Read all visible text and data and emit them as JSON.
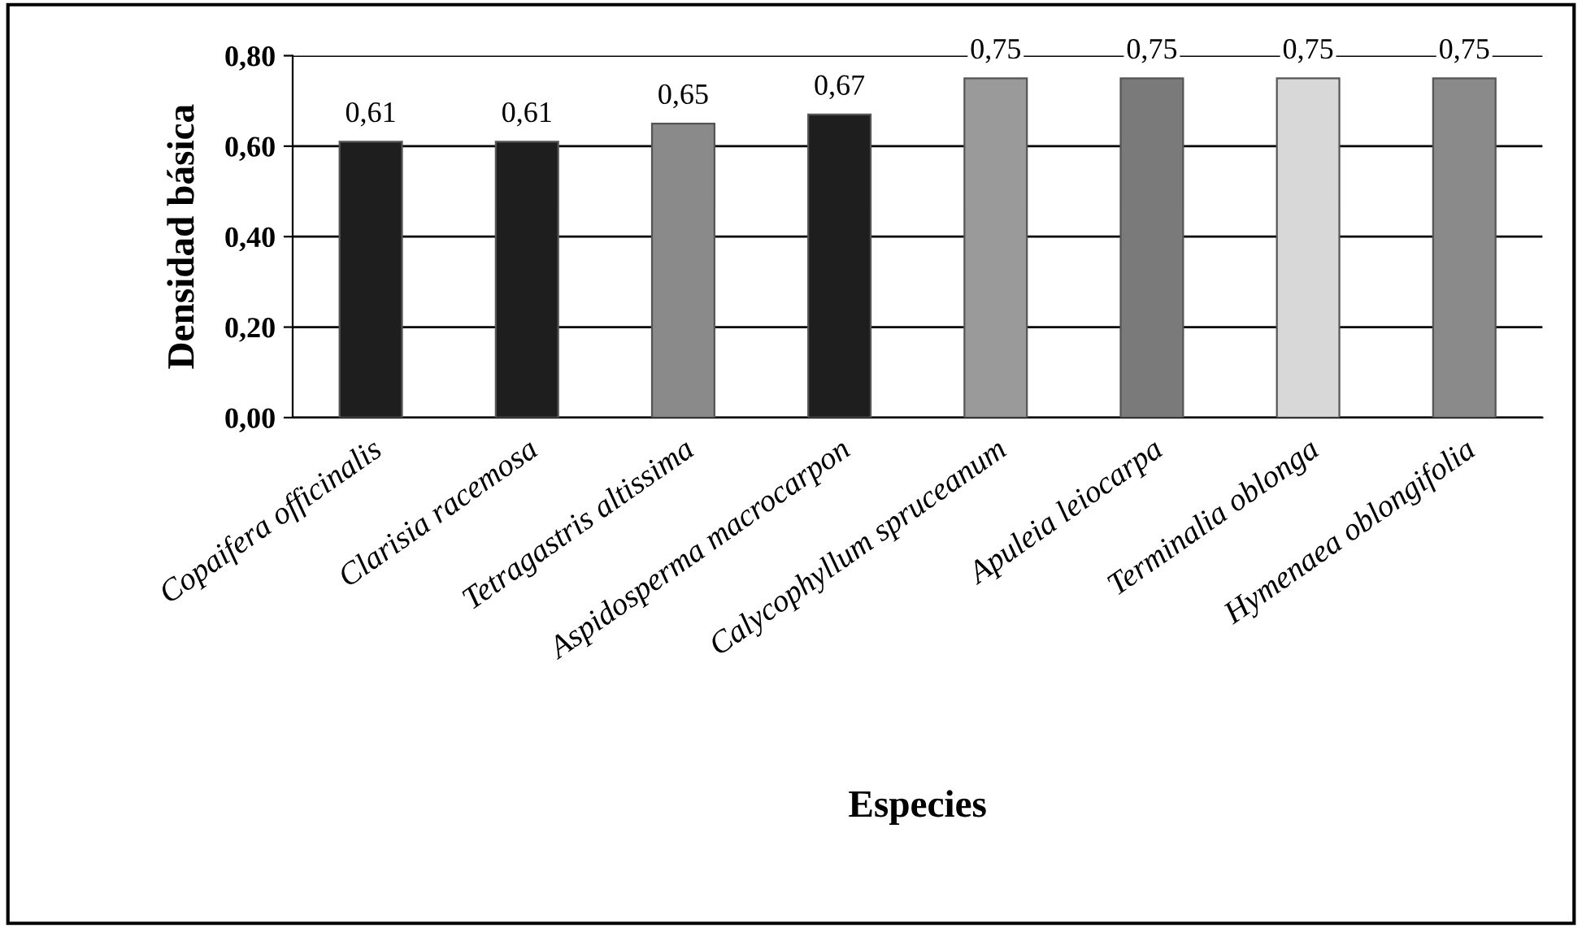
{
  "chart_data": {
    "type": "bar",
    "xlabel": "Especies",
    "ylabel": "Densidad básica",
    "categories": [
      "Copaifera officinalis",
      "Clarisia racemosa",
      "Tetragastris altissima",
      "Aspidosperma macrocarpon",
      "Calycophyllum spruceanum",
      "Apuleia leiocarpa",
      "Terminalia oblonga",
      "Hymenaea oblongifolia"
    ],
    "values": [
      0.61,
      0.61,
      0.65,
      0.67,
      0.75,
      0.75,
      0.75,
      0.75
    ],
    "value_labels": [
      "0,61",
      "0,61",
      "0,65",
      "0,67",
      "0,75",
      "0,75",
      "0,75",
      "0,75"
    ],
    "colors": [
      "#1e1e1e",
      "#1e1e1e",
      "#8a8a8a",
      "#1e1e1e",
      "#9a9a9a",
      "#7a7a7a",
      "#d8d8d8",
      "#8a8a8a"
    ],
    "ylim": [
      0,
      0.8
    ],
    "yticks": [
      {
        "value": 0,
        "label": "0,00"
      },
      {
        "value": 0.2,
        "label": "0,20"
      },
      {
        "value": 0.4,
        "label": "0,40"
      },
      {
        "value": 0.6,
        "label": "0,60"
      },
      {
        "value": 0.8,
        "label": "0,80"
      }
    ],
    "grid": "y"
  }
}
